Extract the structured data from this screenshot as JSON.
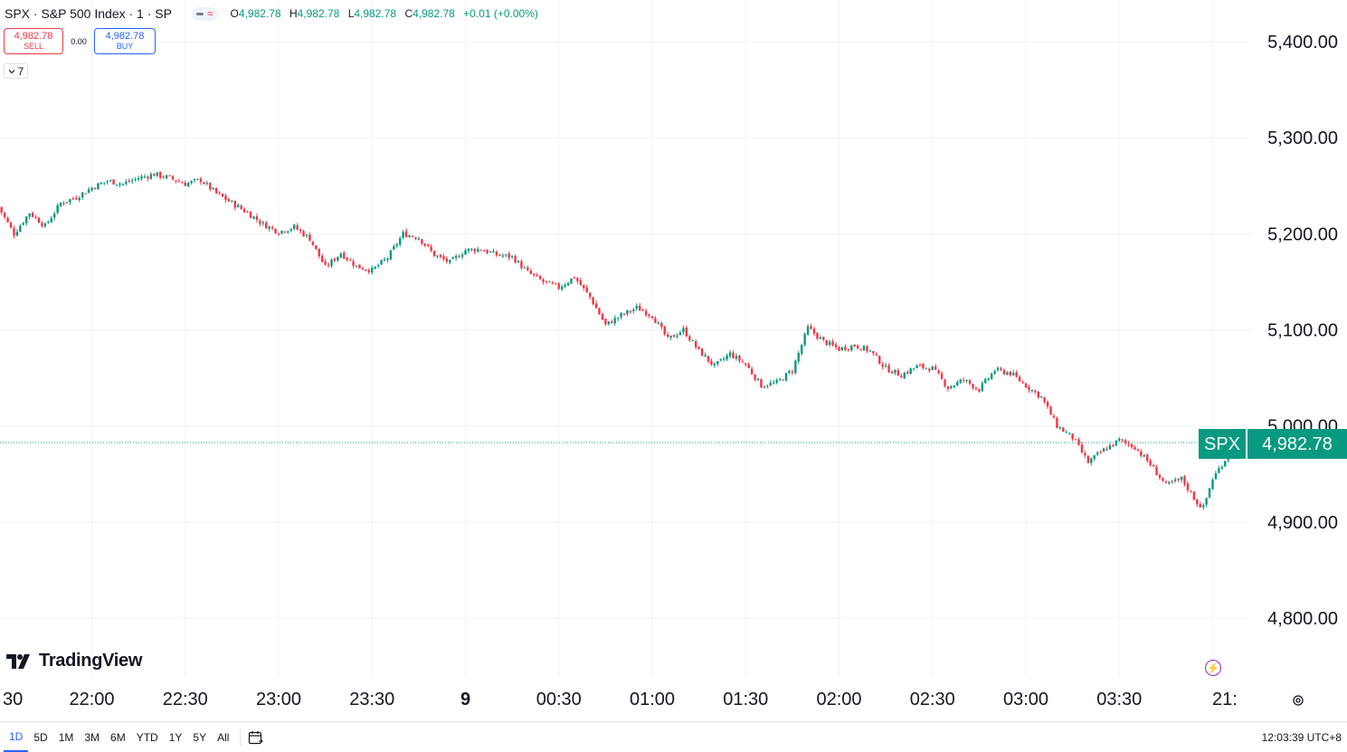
{
  "header": {
    "symbol_title": "SPX · S&P 500 Index · 1 · SP",
    "ohlc": {
      "o_label": "O",
      "o_value": "4,982.78",
      "h_label": "H",
      "h_value": "4,982.78",
      "l_label": "L",
      "l_value": "4,982.78",
      "c_label": "C",
      "c_value": "4,982.78",
      "change": "+0.01 (+0.00%)"
    }
  },
  "trade": {
    "sell_price": "4,982.78",
    "sell_label": "SELL",
    "spread": "0.00",
    "buy_price": "4,982.78",
    "buy_label": "BUY"
  },
  "indicators_toggle": {
    "icon": "chevron-down-icon",
    "count": "7"
  },
  "branding": {
    "logo_text": "TradingView"
  },
  "price_label": {
    "symbol": "SPX",
    "value": "4,982.78"
  },
  "bottom_bar": {
    "ranges": [
      "1D",
      "5D",
      "1M",
      "3M",
      "6M",
      "YTD",
      "1Y",
      "5Y",
      "All"
    ],
    "active_range": "1D",
    "clock": "12:03:39 UTC+8"
  },
  "colors": {
    "up": "#089981",
    "down": "#f23645",
    "grid": "#f0f3fa",
    "price_line": "#089981",
    "accent": "#2962ff"
  },
  "chart_data": {
    "type": "candlestick",
    "symbol": "SPX",
    "title": "SPX · S&P 500 Index · 1 · SP",
    "last_price": 4982.78,
    "ylim": [
      4720,
      5450
    ],
    "y_ticks": [
      4800,
      4900,
      5000,
      5100,
      5200,
      5300,
      5400
    ],
    "y_tick_labels": [
      "4,800.00",
      "4,900.00",
      "5,000.00",
      "5,100.00",
      "5,200.00",
      "5,300.00",
      "5,400.00"
    ],
    "x_ticks": [
      "30",
      "22:00",
      "22:30",
      "23:00",
      "23:30",
      "9",
      "00:30",
      "01:00",
      "01:30",
      "02:00",
      "02:30",
      "03:00",
      "03:30",
      "21:"
    ],
    "x_tick_minutes": [
      -30,
      0,
      30,
      60,
      90,
      120,
      150,
      180,
      210,
      240,
      270,
      300,
      330,
      360
    ],
    "grid": true,
    "bar_interval_minutes": 1,
    "close_path": [
      [
        -30,
        5228
      ],
      [
        -25,
        5200
      ],
      [
        -20,
        5222
      ],
      [
        -15,
        5208
      ],
      [
        -10,
        5232
      ],
      [
        -5,
        5238
      ],
      [
        0,
        5248
      ],
      [
        5,
        5255
      ],
      [
        10,
        5252
      ],
      [
        15,
        5258
      ],
      [
        20,
        5262
      ],
      [
        25,
        5258
      ],
      [
        30,
        5252
      ],
      [
        35,
        5256
      ],
      [
        40,
        5242
      ],
      [
        45,
        5232
      ],
      [
        50,
        5222
      ],
      [
        55,
        5210
      ],
      [
        60,
        5202
      ],
      [
        65,
        5207
      ],
      [
        70,
        5195
      ],
      [
        75,
        5165
      ],
      [
        80,
        5180
      ],
      [
        85,
        5166
      ],
      [
        90,
        5162
      ],
      [
        95,
        5175
      ],
      [
        100,
        5200
      ],
      [
        105,
        5196
      ],
      [
        110,
        5178
      ],
      [
        115,
        5170
      ],
      [
        120,
        5183
      ],
      [
        125,
        5184
      ],
      [
        130,
        5178
      ],
      [
        135,
        5176
      ],
      [
        140,
        5160
      ],
      [
        145,
        5150
      ],
      [
        150,
        5144
      ],
      [
        155,
        5155
      ],
      [
        160,
        5134
      ],
      [
        165,
        5105
      ],
      [
        170,
        5115
      ],
      [
        175,
        5123
      ],
      [
        180,
        5115
      ],
      [
        185,
        5090
      ],
      [
        190,
        5100
      ],
      [
        195,
        5078
      ],
      [
        200,
        5062
      ],
      [
        205,
        5075
      ],
      [
        210,
        5064
      ],
      [
        215,
        5042
      ],
      [
        220,
        5045
      ],
      [
        225,
        5058
      ],
      [
        230,
        5102
      ],
      [
        235,
        5088
      ],
      [
        240,
        5080
      ],
      [
        245,
        5084
      ],
      [
        250,
        5078
      ],
      [
        255,
        5060
      ],
      [
        260,
        5053
      ],
      [
        265,
        5062
      ],
      [
        270,
        5060
      ],
      [
        275,
        5040
      ],
      [
        280,
        5048
      ],
      [
        285,
        5038
      ],
      [
        290,
        5058
      ],
      [
        295,
        5055
      ],
      [
        300,
        5042
      ],
      [
        305,
        5030
      ],
      [
        310,
        5000
      ],
      [
        315,
        4988
      ],
      [
        320,
        4962
      ],
      [
        325,
        4975
      ],
      [
        330,
        4985
      ],
      [
        335,
        4978
      ],
      [
        340,
        4960
      ],
      [
        345,
        4938
      ],
      [
        350,
        4945
      ],
      [
        355,
        4920
      ],
      [
        357,
        4915
      ],
      [
        360,
        4945
      ],
      [
        363,
        4960
      ],
      [
        365,
        4970
      ],
      [
        367,
        4982.78
      ]
    ]
  }
}
